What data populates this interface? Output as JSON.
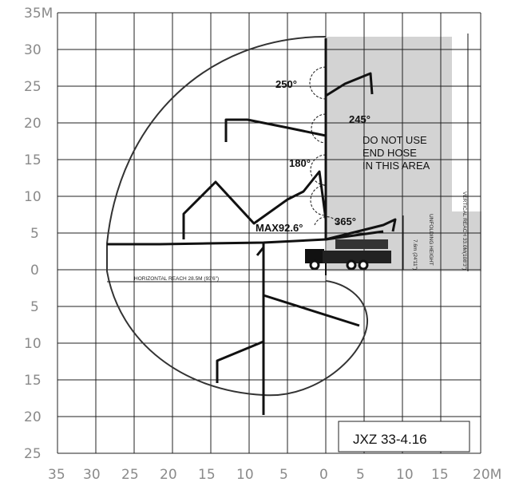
{
  "axes": {
    "y_labels": [
      "35M",
      "30",
      "25",
      "20",
      "15",
      "10",
      "5",
      "0",
      "5",
      "10",
      "15",
      "20",
      "25"
    ],
    "x_labels": [
      "35",
      "30",
      "25",
      "20",
      "15",
      "10",
      "5",
      "0",
      "5",
      "10",
      "15",
      "20M"
    ]
  },
  "annotations": {
    "angle_250": "250°",
    "angle_245": "245°",
    "angle_180": "180°",
    "angle_365": "365°",
    "max_angle": "MAX92.6°",
    "warning_line1": "DO NOT USE",
    "warning_line2": "END HOSE",
    "warning_line3": "IN THIS AREA",
    "horizontal_reach": "HORIZONTAL REACH 28.5M (93'6\")",
    "vertical_reach": "VERTICAL REACH 33.0M(108'3\")",
    "unfolding_height": "UNFOLDING HEIGHT",
    "unfolding_value": "7.6m (24'11\")"
  },
  "model_label": "JXZ 33-4.16",
  "colors": {
    "grid": "#202020",
    "shade": "#d3d3d3",
    "ink": "#111111",
    "tick": "#8a8a8a"
  }
}
